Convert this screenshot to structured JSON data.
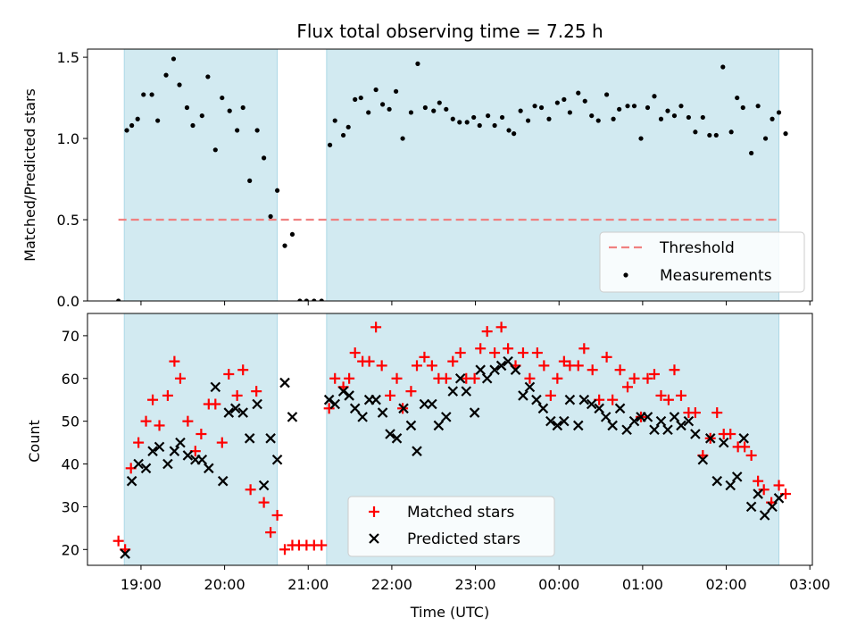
{
  "chart_data": {
    "type": "scatter",
    "title": "Flux total observing time = 7.25 h",
    "xlabel": "Time (UTC)",
    "x_ticks": [
      {
        "t": 19.0,
        "label": "19:00"
      },
      {
        "t": 20.0,
        "label": "20:00"
      },
      {
        "t": 21.0,
        "label": "21:00"
      },
      {
        "t": 22.0,
        "label": "22:00"
      },
      {
        "t": 23.0,
        "label": "23:00"
      },
      {
        "t": 24.0,
        "label": "00:00"
      },
      {
        "t": 25.0,
        "label": "01:00"
      },
      {
        "t": 26.0,
        "label": "02:00"
      },
      {
        "t": 27.0,
        "label": "03:00"
      }
    ],
    "xlim": [
      18.36,
      27.03
    ],
    "observing_windows": [
      [
        18.8,
        20.63
      ],
      [
        21.22,
        26.63
      ]
    ],
    "top": {
      "ylabel": "Matched/Predicted stars",
      "ylim": [
        0,
        1.55
      ],
      "yticks": [
        {
          "v": 0.0,
          "label": "0.0"
        },
        {
          "v": 0.5,
          "label": "0.5"
        },
        {
          "v": 1.0,
          "label": "1.0"
        },
        {
          "v": 1.5,
          "label": "1.5"
        }
      ],
      "threshold": {
        "value": 0.5,
        "x_range": [
          18.73,
          26.63
        ],
        "color": "#f08080"
      },
      "legend": {
        "position": "lower-right",
        "threshold_label": "Threshold",
        "measurements_label": "Measurements"
      },
      "measurements": [
        [
          18.73,
          0.0
        ],
        [
          18.83,
          1.05
        ],
        [
          18.89,
          1.08
        ],
        [
          18.96,
          1.12
        ],
        [
          19.03,
          1.27
        ],
        [
          19.13,
          1.27
        ],
        [
          19.2,
          1.11
        ],
        [
          19.3,
          1.39
        ],
        [
          19.39,
          1.49
        ],
        [
          19.46,
          1.33
        ],
        [
          19.55,
          1.19
        ],
        [
          19.62,
          1.08
        ],
        [
          19.73,
          1.14
        ],
        [
          19.8,
          1.38
        ],
        [
          19.89,
          0.93
        ],
        [
          19.97,
          1.25
        ],
        [
          20.06,
          1.17
        ],
        [
          20.15,
          1.05
        ],
        [
          20.22,
          1.19
        ],
        [
          20.3,
          0.74
        ],
        [
          20.39,
          1.05
        ],
        [
          20.47,
          0.88
        ],
        [
          20.55,
          0.52
        ],
        [
          20.63,
          0.68
        ],
        [
          20.72,
          0.34
        ],
        [
          20.81,
          0.41
        ],
        [
          20.9,
          0.0
        ],
        [
          20.98,
          0.0
        ],
        [
          21.07,
          0.0
        ],
        [
          21.16,
          0.0
        ],
        [
          21.26,
          0.96
        ],
        [
          21.32,
          1.11
        ],
        [
          21.42,
          1.02
        ],
        [
          21.48,
          1.07
        ],
        [
          21.56,
          1.24
        ],
        [
          21.63,
          1.25
        ],
        [
          21.72,
          1.16
        ],
        [
          21.81,
          1.3
        ],
        [
          21.89,
          1.21
        ],
        [
          21.97,
          1.18
        ],
        [
          22.05,
          1.29
        ],
        [
          22.13,
          1.0
        ],
        [
          22.23,
          1.16
        ],
        [
          22.31,
          1.46
        ],
        [
          22.4,
          1.19
        ],
        [
          22.5,
          1.17
        ],
        [
          22.57,
          1.22
        ],
        [
          22.65,
          1.18
        ],
        [
          22.73,
          1.12
        ],
        [
          22.81,
          1.1
        ],
        [
          22.9,
          1.1
        ],
        [
          22.98,
          1.13
        ],
        [
          23.05,
          1.08
        ],
        [
          23.15,
          1.14
        ],
        [
          23.23,
          1.08
        ],
        [
          23.32,
          1.13
        ],
        [
          23.4,
          1.05
        ],
        [
          23.46,
          1.03
        ],
        [
          23.54,
          1.17
        ],
        [
          23.63,
          1.11
        ],
        [
          23.71,
          1.2
        ],
        [
          23.79,
          1.19
        ],
        [
          23.88,
          1.12
        ],
        [
          23.98,
          1.22
        ],
        [
          24.06,
          1.24
        ],
        [
          24.13,
          1.16
        ],
        [
          24.23,
          1.28
        ],
        [
          24.31,
          1.23
        ],
        [
          24.39,
          1.14
        ],
        [
          24.47,
          1.11
        ],
        [
          24.57,
          1.27
        ],
        [
          24.65,
          1.12
        ],
        [
          24.72,
          1.18
        ],
        [
          24.82,
          1.2
        ],
        [
          24.9,
          1.2
        ],
        [
          24.98,
          1.0
        ],
        [
          25.06,
          1.19
        ],
        [
          25.14,
          1.26
        ],
        [
          25.22,
          1.12
        ],
        [
          25.3,
          1.17
        ],
        [
          25.38,
          1.14
        ],
        [
          25.46,
          1.2
        ],
        [
          25.55,
          1.13
        ],
        [
          25.63,
          1.04
        ],
        [
          25.72,
          1.13
        ],
        [
          25.8,
          1.02
        ],
        [
          25.88,
          1.02
        ],
        [
          25.96,
          1.44
        ],
        [
          26.06,
          1.04
        ],
        [
          26.13,
          1.25
        ],
        [
          26.2,
          1.19
        ],
        [
          26.3,
          0.91
        ],
        [
          26.38,
          1.2
        ],
        [
          26.47,
          1.0
        ],
        [
          26.55,
          1.12
        ],
        [
          26.63,
          1.16
        ],
        [
          26.71,
          1.03
        ]
      ]
    },
    "bottom": {
      "ylabel": "Count",
      "ylim": [
        16.3,
        75.2
      ],
      "yticks": [
        {
          "v": 20,
          "label": "20"
        },
        {
          "v": 30,
          "label": "30"
        },
        {
          "v": 40,
          "label": "40"
        },
        {
          "v": 50,
          "label": "50"
        },
        {
          "v": 60,
          "label": "60"
        },
        {
          "v": 70,
          "label": "70"
        }
      ],
      "legend": {
        "position": "bottom-center",
        "matched_label": "Matched stars",
        "predicted_label": "Predicted stars"
      },
      "matched_color": "#ff0000",
      "predicted_color": "#000000",
      "matched": [
        [
          18.73,
          22
        ],
        [
          18.81,
          20
        ],
        [
          18.88,
          39
        ],
        [
          18.97,
          45
        ],
        [
          19.06,
          50
        ],
        [
          19.14,
          55
        ],
        [
          19.22,
          49
        ],
        [
          19.32,
          56
        ],
        [
          19.4,
          64
        ],
        [
          19.47,
          60
        ],
        [
          19.56,
          50
        ],
        [
          19.65,
          43
        ],
        [
          19.72,
          47
        ],
        [
          19.81,
          54
        ],
        [
          19.89,
          54
        ],
        [
          19.97,
          45
        ],
        [
          20.05,
          61
        ],
        [
          20.15,
          56
        ],
        [
          20.22,
          62
        ],
        [
          20.31,
          34
        ],
        [
          20.38,
          57
        ],
        [
          20.47,
          31
        ],
        [
          20.55,
          24
        ],
        [
          20.63,
          28
        ],
        [
          20.72,
          20
        ],
        [
          20.81,
          21
        ],
        [
          20.89,
          21
        ],
        [
          20.98,
          21
        ],
        [
          21.07,
          21
        ],
        [
          21.16,
          21
        ],
        [
          21.25,
          53
        ],
        [
          21.32,
          60
        ],
        [
          21.42,
          58
        ],
        [
          21.49,
          60
        ],
        [
          21.56,
          66
        ],
        [
          21.65,
          64
        ],
        [
          21.73,
          64
        ],
        [
          21.81,
          72
        ],
        [
          21.88,
          63
        ],
        [
          21.98,
          56
        ],
        [
          22.06,
          60
        ],
        [
          22.13,
          53
        ],
        [
          22.23,
          57
        ],
        [
          22.3,
          63
        ],
        [
          22.39,
          65
        ],
        [
          22.48,
          63
        ],
        [
          22.56,
          60
        ],
        [
          22.65,
          60
        ],
        [
          22.73,
          64
        ],
        [
          22.82,
          66
        ],
        [
          22.89,
          60
        ],
        [
          22.99,
          60
        ],
        [
          23.06,
          67
        ],
        [
          23.14,
          71
        ],
        [
          23.23,
          66
        ],
        [
          23.31,
          72
        ],
        [
          23.39,
          67
        ],
        [
          23.48,
          63
        ],
        [
          23.57,
          66
        ],
        [
          23.65,
          60
        ],
        [
          23.74,
          66
        ],
        [
          23.82,
          63
        ],
        [
          23.9,
          56
        ],
        [
          23.98,
          60
        ],
        [
          24.06,
          64
        ],
        [
          24.13,
          63
        ],
        [
          24.23,
          63
        ],
        [
          24.3,
          67
        ],
        [
          24.4,
          62
        ],
        [
          24.48,
          55
        ],
        [
          24.57,
          65
        ],
        [
          24.64,
          55
        ],
        [
          24.73,
          62
        ],
        [
          24.82,
          58
        ],
        [
          24.9,
          60
        ],
        [
          24.98,
          51
        ],
        [
          25.06,
          60
        ],
        [
          25.14,
          61
        ],
        [
          25.22,
          56
        ],
        [
          25.31,
          55
        ],
        [
          25.38,
          62
        ],
        [
          25.46,
          56
        ],
        [
          25.55,
          52
        ],
        [
          25.63,
          52
        ],
        [
          25.72,
          42
        ],
        [
          25.81,
          46
        ],
        [
          25.89,
          52
        ],
        [
          25.97,
          47
        ],
        [
          26.05,
          47
        ],
        [
          26.14,
          44
        ],
        [
          26.22,
          44
        ],
        [
          26.3,
          42
        ],
        [
          26.38,
          36
        ],
        [
          26.45,
          34
        ],
        [
          26.54,
          31
        ],
        [
          26.63,
          35
        ],
        [
          26.71,
          33
        ]
      ],
      "predicted": [
        [
          18.81,
          19
        ],
        [
          18.89,
          36
        ],
        [
          18.97,
          40
        ],
        [
          19.06,
          39
        ],
        [
          19.14,
          43
        ],
        [
          19.22,
          44
        ],
        [
          19.32,
          40
        ],
        [
          19.4,
          43
        ],
        [
          19.47,
          45
        ],
        [
          19.56,
          42
        ],
        [
          19.65,
          41
        ],
        [
          19.73,
          41
        ],
        [
          19.81,
          39
        ],
        [
          19.89,
          58
        ],
        [
          19.98,
          36
        ],
        [
          20.05,
          52
        ],
        [
          20.13,
          53
        ],
        [
          20.22,
          52
        ],
        [
          20.3,
          46
        ],
        [
          20.39,
          54
        ],
        [
          20.47,
          35
        ],
        [
          20.55,
          46
        ],
        [
          20.63,
          41
        ],
        [
          20.72,
          59
        ],
        [
          20.81,
          51
        ],
        [
          21.25,
          55
        ],
        [
          21.32,
          54
        ],
        [
          21.42,
          57
        ],
        [
          21.49,
          56
        ],
        [
          21.56,
          53
        ],
        [
          21.65,
          51
        ],
        [
          21.73,
          55
        ],
        [
          21.81,
          55
        ],
        [
          21.89,
          52
        ],
        [
          21.98,
          47
        ],
        [
          22.06,
          46
        ],
        [
          22.14,
          53
        ],
        [
          22.23,
          49
        ],
        [
          22.3,
          43
        ],
        [
          22.39,
          54
        ],
        [
          22.48,
          54
        ],
        [
          22.56,
          49
        ],
        [
          22.65,
          51
        ],
        [
          22.73,
          57
        ],
        [
          22.82,
          60
        ],
        [
          22.89,
          57
        ],
        [
          22.99,
          52
        ],
        [
          23.06,
          62
        ],
        [
          23.14,
          60
        ],
        [
          23.23,
          62
        ],
        [
          23.31,
          63
        ],
        [
          23.39,
          64
        ],
        [
          23.48,
          62
        ],
        [
          23.57,
          56
        ],
        [
          23.65,
          58
        ],
        [
          23.73,
          55
        ],
        [
          23.81,
          53
        ],
        [
          23.9,
          50
        ],
        [
          23.98,
          49
        ],
        [
          24.06,
          50
        ],
        [
          24.13,
          55
        ],
        [
          24.23,
          49
        ],
        [
          24.3,
          55
        ],
        [
          24.39,
          54
        ],
        [
          24.48,
          53
        ],
        [
          24.56,
          51
        ],
        [
          24.64,
          49
        ],
        [
          24.73,
          53
        ],
        [
          24.81,
          48
        ],
        [
          24.9,
          50
        ],
        [
          24.98,
          51
        ],
        [
          25.06,
          51
        ],
        [
          25.14,
          48
        ],
        [
          25.22,
          50
        ],
        [
          25.3,
          48
        ],
        [
          25.38,
          51
        ],
        [
          25.46,
          49
        ],
        [
          25.55,
          50
        ],
        [
          25.63,
          47
        ],
        [
          25.72,
          41
        ],
        [
          25.81,
          46
        ],
        [
          25.89,
          36
        ],
        [
          25.97,
          45
        ],
        [
          26.05,
          35
        ],
        [
          26.13,
          37
        ],
        [
          26.21,
          46
        ],
        [
          26.3,
          30
        ],
        [
          26.38,
          33
        ],
        [
          26.46,
          28
        ],
        [
          26.55,
          30
        ],
        [
          26.63,
          32
        ]
      ]
    }
  }
}
